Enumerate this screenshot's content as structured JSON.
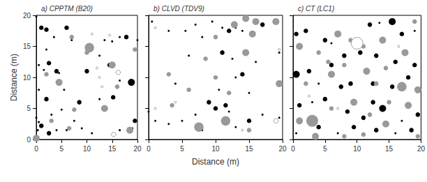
{
  "chart_data": [
    {
      "type": "scatter",
      "title": "a) CPPTM (B20)",
      "ylabel": "Distance (m)",
      "xlim": [
        0,
        20
      ],
      "ylim": [
        0,
        20
      ],
      "xticks": [
        0,
        5,
        10,
        15,
        20
      ],
      "yticks": [
        0,
        5,
        10,
        15,
        20
      ],
      "grid": false,
      "series": [
        {
          "color": "#000000",
          "x": [
            0,
            1,
            2,
            3.5,
            6,
            7,
            2,
            0.5,
            2.5,
            1.5,
            4,
            4.5,
            0.5,
            2,
            3,
            5,
            8.5,
            7.5,
            0,
            0.5,
            1,
            0.3,
            2.5,
            4,
            6,
            9,
            10,
            12.5,
            14.5,
            13.5,
            15,
            16.5,
            17.8,
            12.5,
            15.2,
            18.8,
            16.5,
            19,
            19.5,
            20,
            11,
            5.5,
            16.5
          ],
          "y": [
            19.8,
            18,
            17.7,
            16.5,
            18,
            16,
            14.5,
            12,
            12.3,
            11.2,
            11,
            10.7,
            8,
            6.5,
            4,
            4.8,
            6,
            3,
            3.5,
            2.8,
            2.2,
            1.5,
            1,
            1.5,
            1.5,
            1.8,
            11,
            13.5,
            12,
            16,
            15.8,
            16.5,
            16.5,
            6.5,
            6.8,
            9.2,
            1.5,
            1.8,
            3,
            16,
            1,
            8,
            9.5
          ],
          "sizes": [
            1,
            2,
            2,
            1,
            2,
            1,
            1,
            1,
            2,
            1,
            2,
            1,
            1,
            2,
            1,
            1,
            2,
            1,
            1,
            1,
            2,
            1,
            2,
            1,
            1,
            1,
            2,
            1,
            2,
            1,
            1,
            1,
            2,
            1,
            2,
            3,
            1,
            1,
            2,
            1,
            1,
            1,
            1
          ]
        },
        {
          "color": "#999999",
          "x": [
            10.5,
            4.5,
            7,
            15,
            13.5,
            16,
            18.5,
            6.5,
            0,
            3,
            7.5,
            19.5,
            2,
            10
          ],
          "y": [
            14.8,
            9.2,
            16.5,
            12,
            5,
            8.5,
            1.5,
            1.8,
            0.2,
            3,
            4.8,
            14.5,
            10.5,
            14
          ],
          "sizes": [
            4,
            3,
            2,
            3,
            3,
            2,
            3,
            2,
            3,
            2,
            2,
            2,
            2,
            2
          ]
        },
        {
          "color": "#ffffff",
          "x": [
            12.5,
            13,
            15.3,
            12,
            14.5,
            16.2,
            11
          ],
          "y": [
            10,
            8.5,
            0.8,
            11.5,
            16.8,
            10.8,
            17
          ],
          "sizes": [
            1,
            1,
            2,
            1,
            1,
            2,
            1
          ]
        }
      ]
    },
    {
      "type": "scatter",
      "title": "b) CLVD (TDV9)",
      "xlabel": "Distance (m)",
      "xlim": [
        0,
        20
      ],
      "ylim": [
        0,
        20
      ],
      "xticks": [
        0,
        5,
        10,
        15,
        20
      ],
      "yticks": [
        0,
        5,
        10,
        15,
        20
      ],
      "grid": false,
      "tick_labels": "x",
      "series": [
        {
          "color": "#000000",
          "x": [
            0.5,
            3,
            5.5,
            7,
            9.5,
            11,
            12,
            13,
            14,
            17,
            8,
            6,
            11,
            12.5,
            13,
            14,
            16,
            9,
            10,
            11.5,
            12,
            7,
            5,
            3,
            1,
            0,
            8,
            13,
            15,
            17,
            19.5,
            19.5,
            4,
            10.5,
            15
          ],
          "y": [
            19,
            17.5,
            17.5,
            18.5,
            19,
            18,
            17.5,
            18,
            17.5,
            18.5,
            16.5,
            13.5,
            14,
            13,
            10,
            10.5,
            12.5,
            6,
            5,
            5.5,
            4.5,
            4,
            3,
            2.5,
            3,
            4.5,
            1.5,
            2,
            3,
            4,
            3.5,
            14,
            9,
            8,
            7.5
          ],
          "sizes": [
            1,
            1,
            1,
            1,
            1,
            1,
            2,
            1,
            1,
            2,
            1,
            1,
            2,
            1,
            1,
            2,
            1,
            2,
            2,
            2,
            1,
            1,
            1,
            1,
            1,
            1,
            1,
            1,
            2,
            1,
            1,
            1,
            1,
            1,
            1
          ]
        },
        {
          "color": "#999999",
          "x": [
            14.5,
            12.8,
            16,
            19,
            15.5,
            14.5,
            10,
            3,
            10,
            7.5,
            11.5,
            15,
            19.5,
            6,
            3.5,
            12,
            8.5
          ],
          "y": [
            19.5,
            18.5,
            19,
            19,
            17,
            14,
            16.5,
            10.5,
            10,
            2,
            3,
            1.5,
            9,
            8,
            5.5,
            7.5,
            13
          ],
          "sizes": [
            3,
            3,
            3,
            3,
            3,
            3,
            2,
            2,
            2,
            4,
            4,
            2,
            3,
            2,
            2,
            2,
            2
          ]
        },
        {
          "color": "#ffffff",
          "x": [
            1,
            14,
            19,
            4,
            1,
            19.5
          ],
          "y": [
            5,
            1.5,
            3,
            6,
            18,
            14.5
          ],
          "sizes": [
            1,
            1,
            2,
            1,
            1,
            1
          ]
        }
      ]
    },
    {
      "type": "scatter",
      "title": "c) CT (LC1)",
      "xlim": [
        0,
        20
      ],
      "ylim": [
        0,
        20
      ],
      "xticks": [
        0,
        5,
        10,
        15,
        20
      ],
      "yticks": [
        0,
        5,
        10,
        15,
        20
      ],
      "grid": false,
      "tick_labels": "x",
      "series": [
        {
          "color": "#000000",
          "x": [
            0.5,
            2,
            5,
            6,
            12,
            13.5,
            15.5,
            17,
            19,
            2.5,
            6,
            8,
            10.5,
            13,
            16,
            19,
            0.5,
            4,
            7.5,
            9,
            12.5,
            15.5,
            18,
            1,
            3,
            5,
            8.5,
            11,
            12.5,
            14,
            17,
            19.5,
            0.5,
            4,
            7,
            9.5,
            13,
            18.5,
            16
          ],
          "y": [
            17,
            17.5,
            16,
            15.5,
            18.5,
            18.8,
            19,
            17,
            17.5,
            11,
            12,
            13.5,
            14,
            13.5,
            12.5,
            12,
            10.5,
            9,
            8.5,
            9,
            9,
            8.5,
            10,
            5.5,
            6,
            6.5,
            4.5,
            3.5,
            6,
            5,
            3,
            4,
            1,
            2,
            1,
            2,
            1.5,
            1.5,
            1
          ],
          "sizes": [
            2,
            2,
            2,
            1,
            2,
            1,
            3,
            2,
            1,
            2,
            2,
            2,
            2,
            2,
            2,
            2,
            3,
            1,
            2,
            2,
            2,
            2,
            2,
            2,
            1,
            2,
            2,
            2,
            2,
            3,
            1,
            2,
            1,
            2,
            1,
            2,
            2,
            2,
            1
          ]
        },
        {
          "color": "#999999",
          "x": [
            1,
            4,
            7,
            9,
            11,
            14,
            17.5,
            19,
            2,
            6,
            8,
            11.5,
            14.5,
            17,
            19.5,
            1,
            3,
            6,
            9.5,
            12,
            15,
            18,
            3.5,
            8,
            11,
            14.5,
            19.5,
            5.5,
            13
          ],
          "y": [
            15,
            14,
            17,
            16,
            15,
            16,
            14,
            19,
            9,
            10.5,
            12,
            11,
            11.5,
            8.5,
            8,
            3,
            3,
            5,
            6,
            4,
            6,
            5.5,
            0.5,
            0.5,
            0.8,
            2.5,
            0.5,
            12.5,
            9
          ],
          "sizes": [
            3,
            2,
            3,
            2,
            2,
            3,
            3,
            2,
            2,
            3,
            2,
            3,
            2,
            4,
            3,
            3,
            5,
            2,
            3,
            2,
            2,
            3,
            3,
            2,
            2,
            3,
            2,
            2,
            2
          ]
        },
        {
          "color": "#ffffff",
          "x": [
            10,
            7,
            16.5,
            2.5
          ],
          "y": [
            15.5,
            5,
            15,
            7
          ],
          "sizes": [
            5,
            1,
            1,
            1
          ]
        }
      ]
    }
  ]
}
